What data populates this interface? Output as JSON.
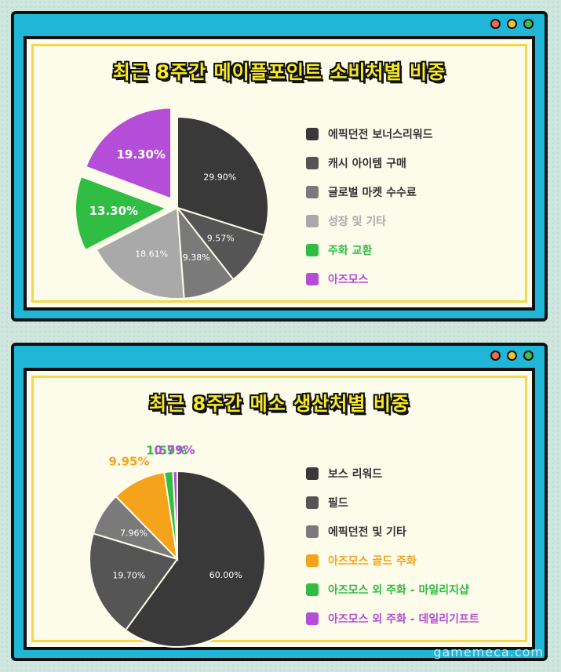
{
  "watermark": "gamemeca.com",
  "chart_data": [
    {
      "type": "pie",
      "title": "최근 8주간 메이플포인트 소비처별 비중",
      "labels": [
        "에픽던전 보너스리워드",
        "캐시 아이템 구매",
        "글로벌 마켓 수수료",
        "성장 및 기타",
        "주화 교환",
        "아즈모스"
      ],
      "values": [
        29.9,
        9.57,
        9.38,
        18.61,
        13.3,
        19.3
      ],
      "value_labels": [
        "29.90%",
        "9.57%",
        "9.38%",
        "18.61%",
        "13.30%",
        "19.30%"
      ],
      "colors": [
        "#393939",
        "#555555",
        "#7a7a7a",
        "#a9a9a9",
        "#2fbd44",
        "#b44ed8"
      ],
      "legend_text_colors": [
        "#333333",
        "#333333",
        "#333333",
        "#a9a9a9",
        "#2fbd44",
        "#b44ed8"
      ],
      "legend": "right"
    },
    {
      "type": "pie",
      "title": "최근 8주간 메소 생산처별 비중",
      "labels": [
        "보스 리워드",
        "필드",
        "에픽던전 및 기타",
        "아즈모스 골드 주화",
        "아즈모스 외 주화 - 마일리지샵",
        "아즈모스 외 주화 - 데일리기프트"
      ],
      "values": [
        60.0,
        19.7,
        7.96,
        9.95,
        1.59,
        0.79
      ],
      "value_labels": [
        "60.00%",
        "19.70%",
        "7.96%",
        "9.95%",
        "1.59%",
        "0.79%"
      ],
      "colors": [
        "#393939",
        "#555555",
        "#7a7a7a",
        "#f6a31c",
        "#2fbd44",
        "#b44ed8"
      ],
      "legend_text_colors": [
        "#333333",
        "#333333",
        "#333333",
        "#f6a31c",
        "#2fbd44",
        "#b44ed8"
      ],
      "legend": "right"
    }
  ]
}
